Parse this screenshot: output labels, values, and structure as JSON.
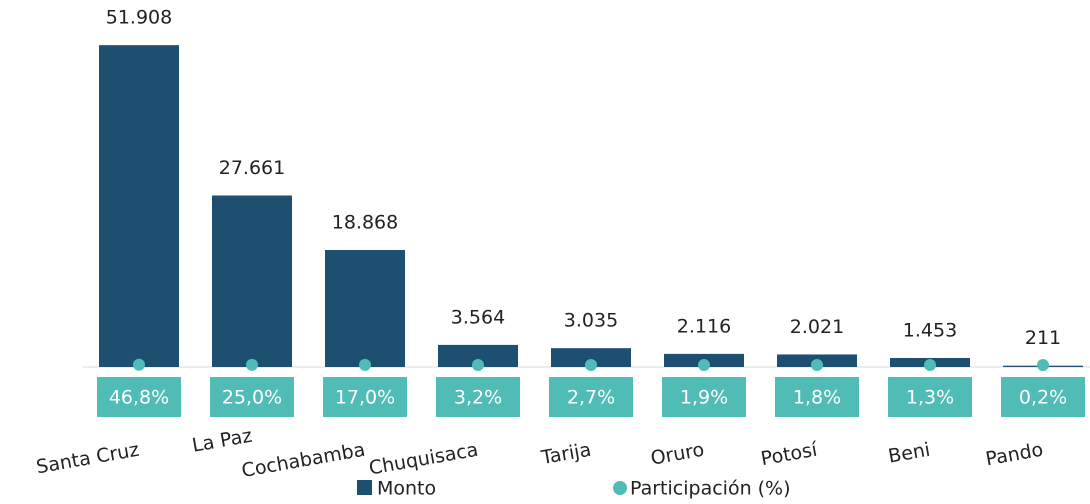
{
  "chart_data": {
    "type": "bar",
    "categories": [
      "Santa Cruz",
      "La Paz",
      "Cochabamba",
      "Chuquisaca",
      "Tarija",
      "Oruro",
      "Potosí",
      "Beni",
      "Pando"
    ],
    "series": [
      {
        "name": "Monto",
        "type": "bar",
        "color": "#1c4f70",
        "values": [
          51908,
          27661,
          18868,
          3564,
          3035,
          2116,
          2021,
          1453,
          211
        ],
        "value_labels": [
          "51.908",
          "27.661",
          "18.868",
          "3.564",
          "3.035",
          "2.116",
          "2.021",
          "1.453",
          "211"
        ]
      },
      {
        "name": "Participación (%)",
        "type": "scatter",
        "color": "#4fbdb6",
        "values": [
          46.8,
          25.0,
          17.0,
          3.2,
          2.7,
          1.9,
          1.8,
          1.3,
          0.2
        ],
        "value_labels": [
          "46,8%",
          "25,0%",
          "17,0%",
          "3,2%",
          "2,7%",
          "1,9%",
          "1,8%",
          "1,3%",
          "0,2%"
        ]
      }
    ],
    "ylim": [
      0,
      55000
    ],
    "legend": "bottom"
  }
}
